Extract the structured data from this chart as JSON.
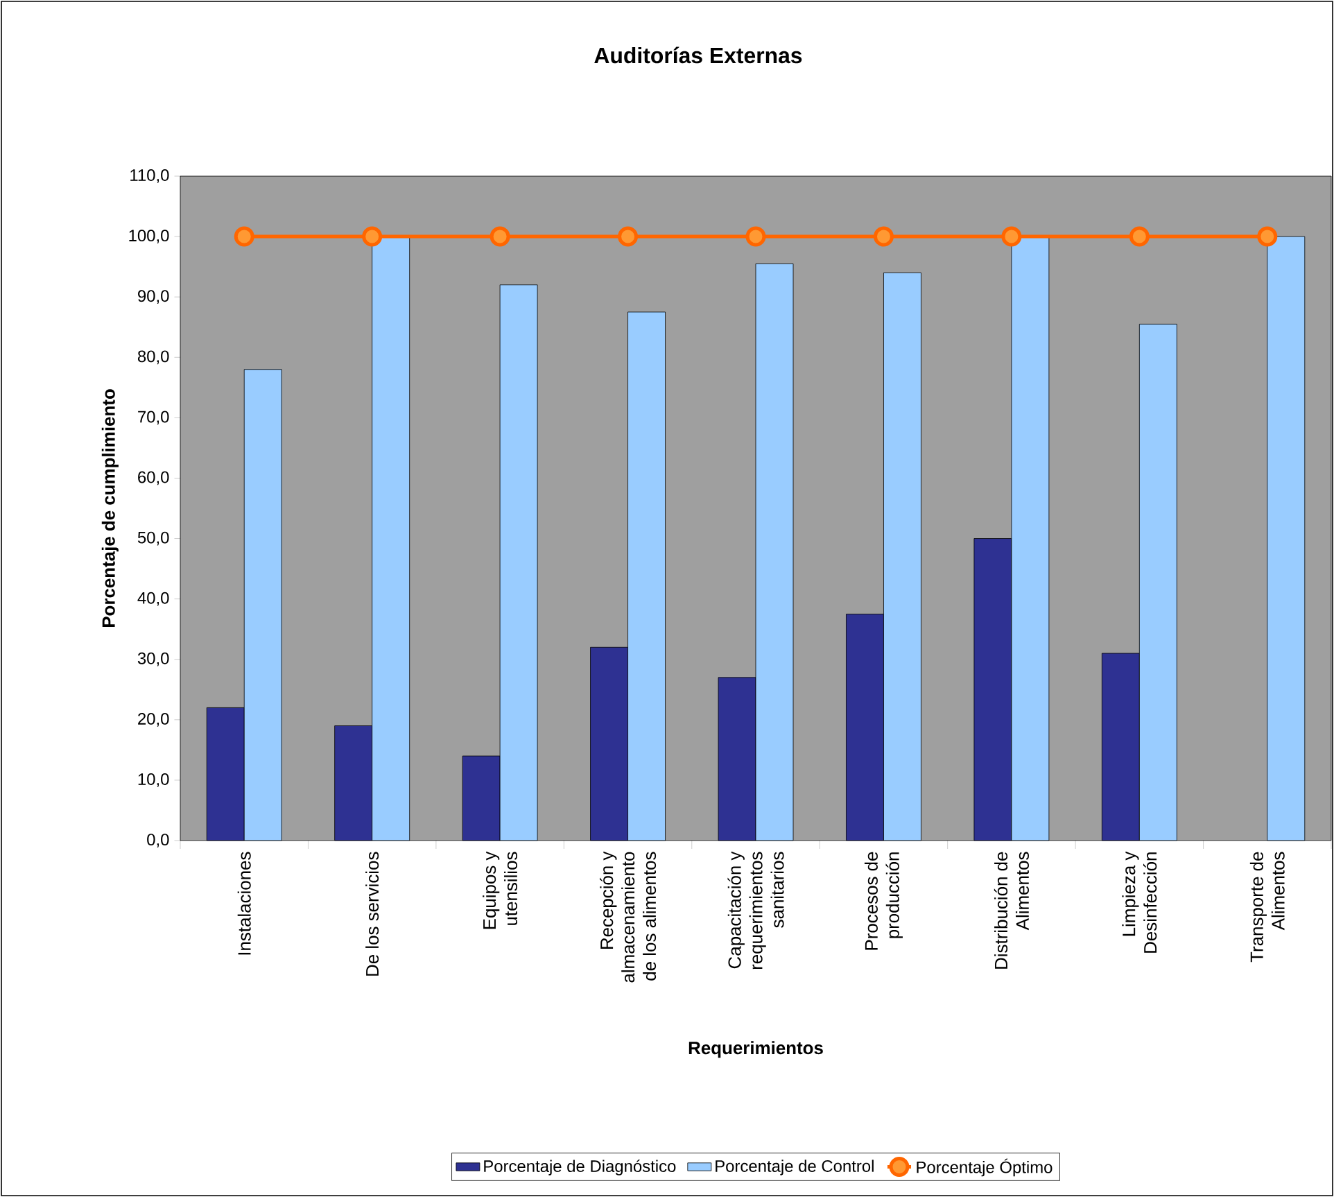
{
  "chart_data": {
    "type": "bar",
    "title": "Auditorías Externas",
    "xlabel": "Requerimientos",
    "ylabel": "Porcentaje de cumplimiento",
    "categories": [
      "Instalaciones",
      "De los servicios",
      "Equipos y utensilios",
      "Recepción y almacenamiento de los alimentos",
      "Capacitación y requerimientos sanitarios",
      "Procesos de producción",
      "Distribución de Alimentos",
      "Limpieza y Desinfección",
      "Transporte de Alimentos"
    ],
    "series": [
      {
        "name": "Porcentaje de Diagnóstico",
        "color": "#2e3192",
        "values": [
          22,
          19,
          14,
          32,
          27,
          37.5,
          50,
          31,
          null
        ]
      },
      {
        "name": "Porcentaje de Control",
        "color": "#99ccff",
        "values": [
          78,
          100,
          92,
          87.5,
          95.5,
          94,
          100,
          85.5,
          100
        ]
      },
      {
        "name": "Porcentaje Óptimo",
        "type": "line",
        "color": "#ff6600",
        "marker": "circle",
        "values": [
          100,
          100,
          100,
          100,
          100,
          100,
          100,
          100,
          100
        ]
      }
    ],
    "ylim": [
      0,
      110
    ],
    "yticks": [
      {
        "value": 0,
        "label": "0,0"
      },
      {
        "value": 10,
        "label": "10,0"
      },
      {
        "value": 20,
        "label": "20,0"
      },
      {
        "value": 30,
        "label": "30,0"
      },
      {
        "value": 40,
        "label": "40,0"
      },
      {
        "value": 50,
        "label": "50,0"
      },
      {
        "value": 60,
        "label": "60,0"
      },
      {
        "value": 70,
        "label": "70,0"
      },
      {
        "value": 80,
        "label": "80,0"
      },
      {
        "value": 90,
        "label": "90,0"
      },
      {
        "value": 100,
        "label": "100,0"
      },
      {
        "value": 110,
        "label": "110,0"
      }
    ],
    "grid": false,
    "legend": "bottom"
  }
}
